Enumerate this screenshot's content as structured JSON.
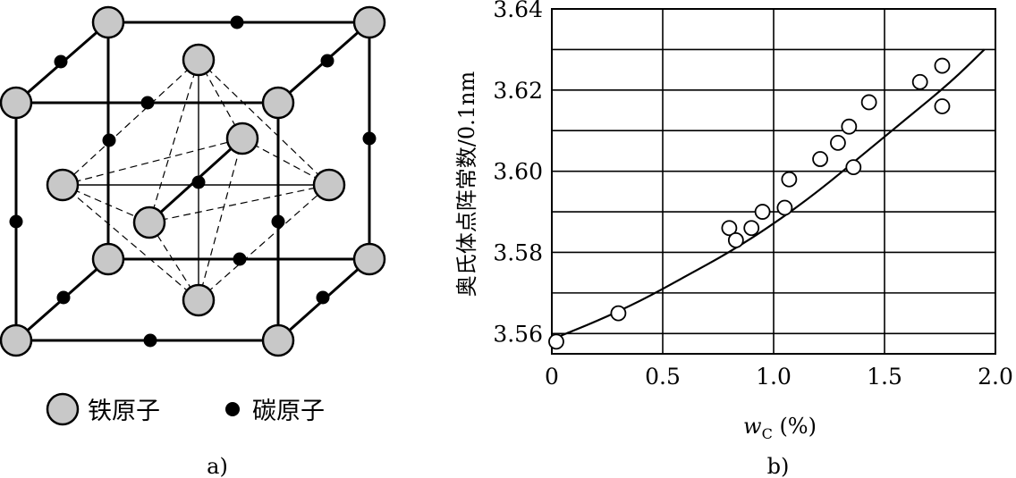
{
  "panel_a": {
    "label": "a)",
    "legend": {
      "iron": "铁原子",
      "carbon": "碳原子"
    }
  },
  "panel_b": {
    "label": "b)"
  },
  "chart_data": {
    "type": "scatter",
    "title": "",
    "xlabel": "wC (%)",
    "ylabel": "奥氏体点阵常数/0.1nm",
    "xlim": [
      0,
      2.0
    ],
    "ylim": [
      3.555,
      3.64
    ],
    "x_ticks": [
      0,
      0.5,
      1.0,
      1.5,
      2.0
    ],
    "x_tick_labels": [
      "0",
      "0.5",
      "1.0",
      "1.5",
      "2.0"
    ],
    "y_ticks": [
      3.56,
      3.58,
      3.6,
      3.62,
      3.64
    ],
    "y_tick_labels": [
      "3.56",
      "3.58",
      "3.60",
      "3.62",
      "3.64"
    ],
    "grid": true,
    "series": [
      {
        "kind": "scatter",
        "marker": "open-circle",
        "x": [
          0.02,
          0.3,
          0.8,
          0.83,
          0.9,
          0.95,
          1.05,
          1.07,
          1.21,
          1.29,
          1.34,
          1.36,
          1.43,
          1.66,
          1.76,
          1.76
        ],
        "y": [
          3.558,
          3.565,
          3.586,
          3.583,
          3.586,
          3.59,
          3.591,
          3.598,
          3.603,
          3.607,
          3.611,
          3.601,
          3.617,
          3.622,
          3.626,
          3.616
        ]
      },
      {
        "kind": "line",
        "marker": "none",
        "x": [
          0.02,
          0.2,
          0.4,
          0.6,
          0.8,
          1.0,
          1.2,
          1.4,
          1.6,
          1.8,
          1.95
        ],
        "y": [
          3.559,
          3.563,
          3.568,
          3.574,
          3.58,
          3.587,
          3.595,
          3.604,
          3.613,
          3.622,
          3.63
        ]
      }
    ]
  }
}
